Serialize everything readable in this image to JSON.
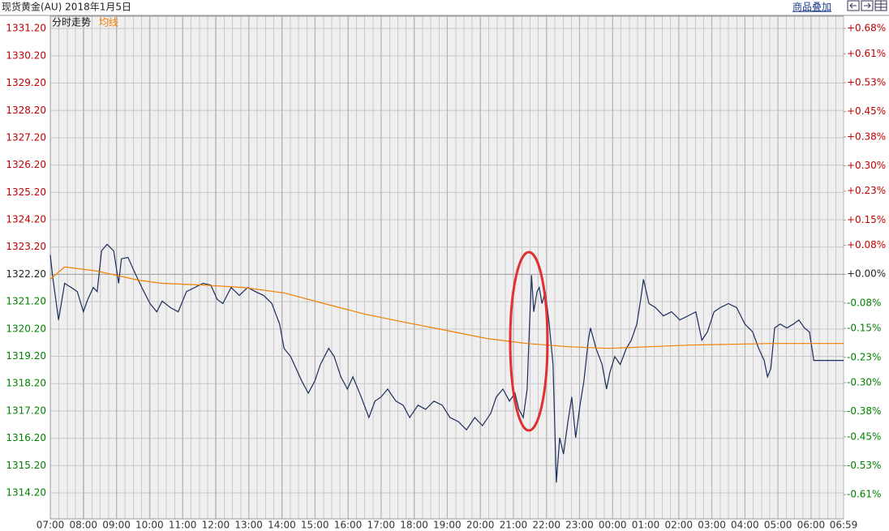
{
  "header": {
    "title": "现货黄金(AU) 2018年1月5日",
    "overlay_link": "商品叠加"
  },
  "chart_data": {
    "type": "line",
    "series": [
      {
        "name": "分时走势",
        "color": "#1a2d5a",
        "x": [
          0,
          4,
          15,
          26,
          38,
          49,
          60,
          68,
          78,
          85,
          93,
          103,
          115,
          124,
          129,
          141,
          152,
          166,
          181,
          193,
          203,
          218,
          232,
          247,
          262,
          277,
          291,
          303,
          313,
          328,
          343,
          358,
          372,
          387,
          402,
          416,
          424,
          436,
          446,
          456,
          468,
          480,
          490,
          505,
          515,
          527,
          539,
          549,
          564,
          578,
          589,
          600,
          612,
          627,
          640,
          652,
          667,
          681,
          696,
          711,
          725,
          740,
          755,
          770,
          784,
          799,
          809,
          821,
          833,
          843,
          850,
          858,
          865,
          868,
          873,
          877,
          883,
          887,
          892,
          898,
          905,
          912,
          918,
          924,
          931,
          939,
          946,
          953,
          961,
          968,
          976,
          980,
          990,
          1001,
          1009,
          1015,
          1024,
          1034,
          1045,
          1054,
          1064,
          1071,
          1076,
          1086,
          1098,
          1112,
          1127,
          1142,
          1157,
          1171,
          1182,
          1192,
          1204,
          1215,
          1230,
          1245,
          1260,
          1274,
          1285,
          1295,
          1301,
          1307,
          1314,
          1324,
          1336,
          1348,
          1358,
          1368,
          1377,
          1385,
          1439
        ],
        "values": [
          1322.91,
          1322.17,
          1320.53,
          1321.87,
          1321.72,
          1321.57,
          1320.83,
          1321.28,
          1321.72,
          1321.57,
          1323.06,
          1323.3,
          1323.06,
          1321.87,
          1322.77,
          1322.82,
          1322.32,
          1321.72,
          1321.13,
          1320.83,
          1321.22,
          1320.98,
          1320.83,
          1321.57,
          1321.72,
          1321.87,
          1321.81,
          1321.28,
          1321.13,
          1321.72,
          1321.43,
          1321.72,
          1321.57,
          1321.43,
          1321.13,
          1320.38,
          1319.49,
          1319.19,
          1318.75,
          1318.3,
          1317.85,
          1318.3,
          1318.9,
          1319.49,
          1319.19,
          1318.45,
          1318.0,
          1318.45,
          1317.71,
          1316.96,
          1317.56,
          1317.71,
          1318.0,
          1317.56,
          1317.41,
          1316.96,
          1317.41,
          1317.26,
          1317.56,
          1317.41,
          1316.96,
          1316.81,
          1316.51,
          1316.96,
          1316.66,
          1317.11,
          1317.71,
          1318.0,
          1317.56,
          1317.85,
          1317.26,
          1316.96,
          1318.0,
          1319.64,
          1322.17,
          1320.83,
          1321.57,
          1321.72,
          1321.13,
          1321.57,
          1320.38,
          1318.9,
          1314.58,
          1316.22,
          1315.62,
          1316.81,
          1317.71,
          1316.22,
          1317.41,
          1318.3,
          1319.79,
          1320.24,
          1319.49,
          1318.9,
          1318.0,
          1318.6,
          1319.19,
          1318.9,
          1319.49,
          1319.79,
          1320.38,
          1321.28,
          1322.02,
          1321.13,
          1320.98,
          1320.68,
          1320.83,
          1320.53,
          1320.68,
          1320.83,
          1319.79,
          1320.09,
          1320.83,
          1320.98,
          1321.13,
          1320.98,
          1320.38,
          1320.09,
          1319.49,
          1319.05,
          1318.45,
          1318.75,
          1320.24,
          1320.38,
          1320.24,
          1320.38,
          1320.53,
          1320.24,
          1320.09,
          1319.05,
          1319.05
        ]
      },
      {
        "name": "均线",
        "color": "#f08000",
        "x": [
          0,
          26,
          85,
          159,
          203,
          277,
          350,
          424,
          497,
          571,
          644,
          718,
          792,
          865,
          939,
          1012,
          1086,
          1159,
          1233,
          1307,
          1439
        ],
        "values": [
          1322.02,
          1322.47,
          1322.32,
          1321.99,
          1321.87,
          1321.81,
          1321.72,
          1321.52,
          1321.13,
          1320.74,
          1320.44,
          1320.15,
          1319.85,
          1319.67,
          1319.55,
          1319.49,
          1319.55,
          1319.61,
          1319.64,
          1319.67,
          1319.67
        ]
      }
    ],
    "xlim": [
      0,
      1439
    ],
    "xticks": [
      {
        "value": 0,
        "label": "07:00"
      },
      {
        "value": 60,
        "label": "08:00"
      },
      {
        "value": 120,
        "label": "09:00"
      },
      {
        "value": 180,
        "label": "10:00"
      },
      {
        "value": 240,
        "label": "11:00"
      },
      {
        "value": 300,
        "label": "12:00"
      },
      {
        "value": 360,
        "label": "13:00"
      },
      {
        "value": 420,
        "label": "14:00"
      },
      {
        "value": 480,
        "label": "15:00"
      },
      {
        "value": 540,
        "label": "16:00"
      },
      {
        "value": 600,
        "label": "17:00"
      },
      {
        "value": 660,
        "label": "18:00"
      },
      {
        "value": 720,
        "label": "19:00"
      },
      {
        "value": 780,
        "label": "20:00"
      },
      {
        "value": 840,
        "label": "21:00"
      },
      {
        "value": 900,
        "label": "22:00"
      },
      {
        "value": 960,
        "label": "23:00"
      },
      {
        "value": 1020,
        "label": "00:00"
      },
      {
        "value": 1080,
        "label": "01:00"
      },
      {
        "value": 1140,
        "label": "02:00"
      },
      {
        "value": 1200,
        "label": "03:00"
      },
      {
        "value": 1260,
        "label": "04:00"
      },
      {
        "value": 1320,
        "label": "05:00"
      },
      {
        "value": 1380,
        "label": "06:00"
      },
      {
        "value": 1439,
        "label": "06:59"
      }
    ],
    "ylim": [
      1313.25,
      1331.65
    ],
    "yticks": [
      {
        "value": 1331.2,
        "label": "1331.20"
      },
      {
        "value": 1330.2,
        "label": "1330.20"
      },
      {
        "value": 1329.2,
        "label": "1329.20"
      },
      {
        "value": 1328.2,
        "label": "1328.20"
      },
      {
        "value": 1327.2,
        "label": "1327.20"
      },
      {
        "value": 1326.2,
        "label": "1326.20"
      },
      {
        "value": 1325.2,
        "label": "1325.20"
      },
      {
        "value": 1324.2,
        "label": "1324.20"
      },
      {
        "value": 1323.2,
        "label": "1323.20"
      },
      {
        "value": 1322.2,
        "label": "1322.20"
      },
      {
        "value": 1321.2,
        "label": "1321.20"
      },
      {
        "value": 1320.2,
        "label": "1320.20"
      },
      {
        "value": 1319.2,
        "label": "1319.20"
      },
      {
        "value": 1318.2,
        "label": "1318.20"
      },
      {
        "value": 1317.2,
        "label": "1317.20"
      },
      {
        "value": 1316.2,
        "label": "1316.20"
      },
      {
        "value": 1315.2,
        "label": "1315.20"
      },
      {
        "value": 1314.2,
        "label": "1314.20"
      }
    ],
    "y2lim": [
      -0.677,
      0.714
    ],
    "y2ticks": [
      {
        "value": 0.68,
        "label": "+0.68%"
      },
      {
        "value": 0.61,
        "label": "+0.61%"
      },
      {
        "value": 0.53,
        "label": "+0.53%"
      },
      {
        "value": 0.45,
        "label": "+0.45%"
      },
      {
        "value": 0.38,
        "label": "+0.38%"
      },
      {
        "value": 0.3,
        "label": "+0.30%"
      },
      {
        "value": 0.23,
        "label": "+0.23%"
      },
      {
        "value": 0.15,
        "label": "+0.15%"
      },
      {
        "value": 0.08,
        "label": "+0.08%"
      },
      {
        "value": 0,
        "label": "+0.00%"
      },
      {
        "value": -0.08,
        "label": "-0.08%"
      },
      {
        "value": -0.15,
        "label": "-0.15%"
      },
      {
        "value": -0.23,
        "label": "-0.23%"
      },
      {
        "value": -0.3,
        "label": "-0.30%"
      },
      {
        "value": -0.38,
        "label": "-0.38%"
      },
      {
        "value": -0.45,
        "label": "-0.45%"
      },
      {
        "value": -0.53,
        "label": "-0.53%"
      },
      {
        "value": -0.61,
        "label": "-0.61%"
      }
    ],
    "grid": true
  }
}
